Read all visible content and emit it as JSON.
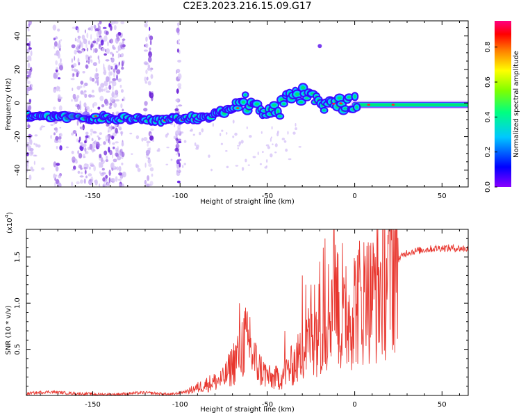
{
  "title": "C2E3.2023.216.15.09.G17",
  "colors": {
    "signal_core": "#00e676",
    "signal_mid": "#00d0ff",
    "signal_outer": "#1e00ff",
    "noise": "#8a2be2",
    "snr_line": "#e8362e"
  },
  "chart_data": [
    {
      "type": "heatmap",
      "xlabel": "Height of straight line (km)",
      "ylabel": "Frequency (Hz)",
      "xlim": [
        -188,
        65
      ],
      "ylim": [
        -50,
        49
      ],
      "xticks": [
        -150,
        -100,
        -50,
        0,
        50
      ],
      "yticks": [
        -40,
        -20,
        0,
        20,
        40
      ],
      "grid": false,
      "colorbar": {
        "label": "Normalized spectral amplitude",
        "range": [
          0,
          0.95
        ],
        "ticks": [
          0.0,
          0.2,
          0.4,
          0.6,
          0.8
        ],
        "colormap": [
          "#8a00ff",
          "#0000ff",
          "#00c8ff",
          "#00ff80",
          "#7fff00",
          "#ffff00",
          "#ff8000",
          "#ff0000",
          "#ff0080"
        ]
      },
      "signal_track": [
        {
          "x": -188,
          "freq": -8
        },
        {
          "x": -170,
          "freq": -8
        },
        {
          "x": -150,
          "freq": -9
        },
        {
          "x": -130,
          "freq": -9
        },
        {
          "x": -110,
          "freq": -10
        },
        {
          "x": -90,
          "freq": -9
        },
        {
          "x": -80,
          "freq": -7
        },
        {
          "x": -70,
          "freq": -3
        },
        {
          "x": -60,
          "freq": 1
        },
        {
          "x": -50,
          "freq": -4
        },
        {
          "x": -45,
          "freq": -6
        },
        {
          "x": -35,
          "freq": 5
        },
        {
          "x": -25,
          "freq": 4
        },
        {
          "x": -20,
          "freq": -2
        },
        {
          "x": -10,
          "freq": 0
        },
        {
          "x": 0,
          "freq": -1
        },
        {
          "x": 10,
          "freq": -1
        },
        {
          "x": 30,
          "freq": -1
        },
        {
          "x": 65,
          "freq": -1
        }
      ],
      "noise_bands_x": [
        [
          -188,
          -185
        ],
        [
          -172,
          -168
        ],
        [
          -162,
          -132
        ],
        [
          -120,
          -116
        ],
        [
          -102,
          -100
        ]
      ]
    },
    {
      "type": "line",
      "xlabel": "Height of straight line (km)",
      "ylabel": "SNR (10 * v/v)",
      "y_multiplier_label": "(x10",
      "y_multiplier_exp": "4",
      "xlim": [
        -188,
        65
      ],
      "ylim": [
        0,
        1.8
      ],
      "xticks": [
        -150,
        -100,
        -50,
        0,
        50
      ],
      "yticks": [
        0.5,
        1.0,
        1.5
      ],
      "ytick_labels": [
        "0.5",
        "1.0",
        "1.5"
      ],
      "grid": false,
      "series": [
        {
          "color": "#e8362e",
          "points": [
            [
              -188,
              0.02
            ],
            [
              -175,
              0.04
            ],
            [
              -160,
              0.02
            ],
            [
              -140,
              0.01
            ],
            [
              -120,
              0.03
            ],
            [
              -105,
              0.01
            ],
            [
              -95,
              0.05
            ],
            [
              -85,
              0.12
            ],
            [
              -75,
              0.18
            ],
            [
              -68,
              0.4
            ],
            [
              -63,
              0.6
            ],
            [
              -55,
              0.3
            ],
            [
              -48,
              0.18
            ],
            [
              -42,
              0.2
            ],
            [
              -37,
              0.3
            ],
            [
              -30,
              0.45
            ],
            [
              -25,
              0.65
            ],
            [
              -20,
              0.75
            ],
            [
              -17,
              0.8
            ],
            [
              -14,
              0.95
            ],
            [
              -12,
              1.2
            ],
            [
              -8,
              0.72
            ],
            [
              -4,
              0.85
            ],
            [
              0,
              1.0
            ],
            [
              5,
              1.05
            ],
            [
              10,
              1.05
            ],
            [
              15,
              1.2
            ],
            [
              20,
              1.38
            ],
            [
              25,
              1.48
            ],
            [
              30,
              1.55
            ],
            [
              40,
              1.58
            ],
            [
              50,
              1.6
            ],
            [
              65,
              1.59
            ]
          ],
          "spikes": [
            [
              -66,
              1.0
            ],
            [
              -60,
              0.85
            ],
            [
              -40,
              0.7
            ],
            [
              -30,
              1.3
            ],
            [
              -28,
              1.2
            ],
            [
              -25,
              1.2
            ],
            [
              -23,
              1.2
            ],
            [
              -20,
              1.45
            ],
            [
              -18,
              1.6
            ],
            [
              -17,
              1.7
            ],
            [
              -12,
              1.8
            ],
            [
              -10,
              1.55
            ],
            [
              -7,
              1.65
            ],
            [
              -5,
              1.4
            ],
            [
              7,
              1.62
            ],
            [
              10,
              1.4
            ],
            [
              12,
              1.5
            ]
          ]
        }
      ]
    }
  ]
}
